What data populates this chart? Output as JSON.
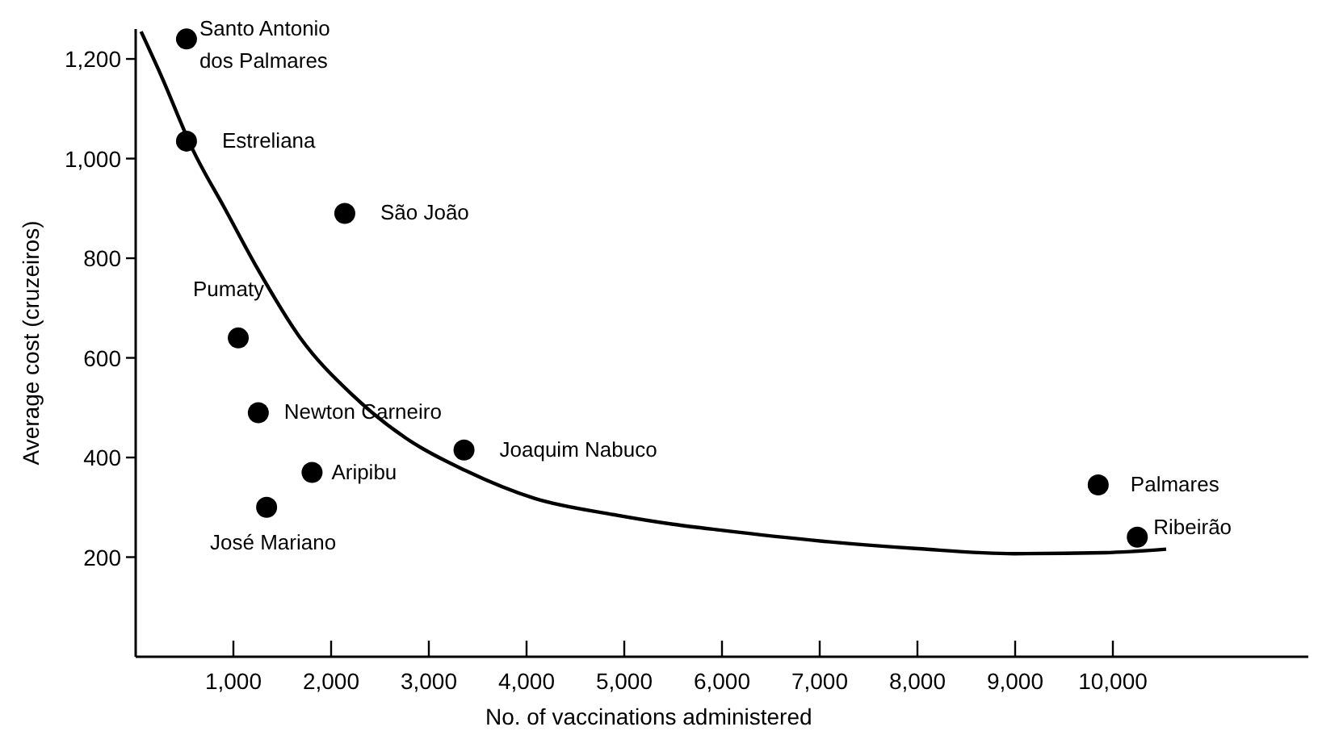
{
  "chart_data": {
    "type": "scatter",
    "xlabel": "No. of vaccinations administered",
    "ylabel": "Average cost (cruzeiros)",
    "xlim": [
      0,
      12000
    ],
    "ylim": [
      0,
      1260
    ],
    "xticks": [
      {
        "value": 1000,
        "label": "1,000"
      },
      {
        "value": 2000,
        "label": "2,000"
      },
      {
        "value": 3000,
        "label": "3,000"
      },
      {
        "value": 4000,
        "label": "4,000"
      },
      {
        "value": 5000,
        "label": "5,000"
      },
      {
        "value": 6000,
        "label": "6,000"
      },
      {
        "value": 7000,
        "label": "7,000"
      },
      {
        "value": 8000,
        "label": "8,000"
      },
      {
        "value": 9000,
        "label": "9,000"
      },
      {
        "value": 10000,
        "label": "10,000"
      }
    ],
    "yticks": [
      200,
      400,
      600,
      800,
      {
        "value": 1000,
        "label": "1,000"
      },
      {
        "value": 1200,
        "label": "1,200"
      }
    ],
    "grid": false,
    "marker": "circle",
    "series": [
      {
        "color": "#000000",
        "x": [
          520,
          520,
          2140,
          1050,
          1255,
          1805,
          1340,
          3360,
          9850,
          10250
        ],
        "values": [
          1240,
          1035,
          890,
          640,
          490,
          370,
          300,
          415,
          345,
          240
        ]
      },
      {
        "type": "line",
        "color": "#000000",
        "marker": "none",
        "line_style": "solid",
        "x": [
          55,
          262,
          589,
          917,
          1244,
          1681,
          2226,
          2771,
          3372,
          4080,
          4899,
          5499,
          5990,
          7082,
          8008,
          8991,
          9918,
          10545
        ],
        "values": [
          1255,
          1166,
          1016,
          898,
          780,
          641,
          524,
          438,
          374,
          318,
          285,
          266,
          254,
          231,
          217,
          207,
          209,
          216
        ]
      }
    ],
    "annotations": [
      {
        "text": "Santo Antonio\ndos Palmares",
        "x": 520,
        "y": 1240
      },
      {
        "text": "Estreliana",
        "x": 520,
        "y": 1035
      },
      {
        "text": "São João",
        "x": 2140,
        "y": 890
      },
      {
        "text": "Pumaty",
        "x": 1050,
        "y": 640
      },
      {
        "text": "Newton Carneiro",
        "x": 1255,
        "y": 490
      },
      {
        "text": "Aripibu",
        "x": 1805,
        "y": 370
      },
      {
        "text": "José Mariano",
        "x": 1340,
        "y": 300
      },
      {
        "text": "Joaquim Nabuco",
        "x": 3360,
        "y": 415
      },
      {
        "text": "Palmares",
        "x": 9850,
        "y": 345
      },
      {
        "text": "Ribeirão",
        "x": 10250,
        "y": 240
      }
    ]
  }
}
